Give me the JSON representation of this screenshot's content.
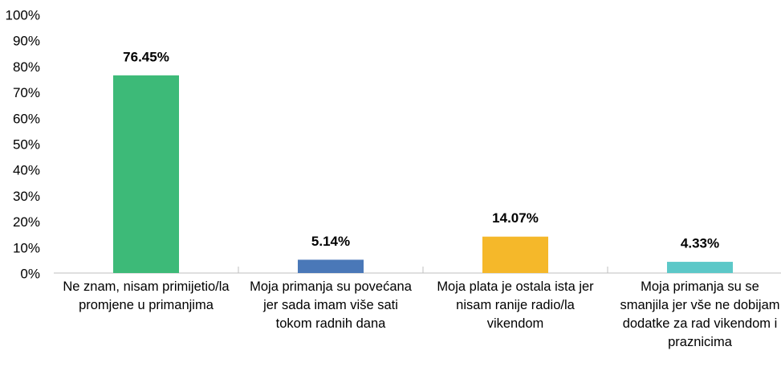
{
  "chart_data": {
    "type": "bar",
    "categories": [
      "Ne znam, nisam primijetio/la promjene u primanjima",
      "Moja primanja su povećana jer sada imam više sati tokom radnih dana",
      "Moja plata je ostala ista jer nisam ranije radio/la vikendom",
      "Moja primanja su se smanjila jer vše ne dobijam dodatke za rad vikendom i praznicima"
    ],
    "values": [
      76.45,
      5.14,
      14.07,
      4.33
    ],
    "value_labels": [
      "76.45%",
      "5.14%",
      "14.07%",
      "4.33%"
    ],
    "colors": [
      "#3dba78",
      "#4a78b8",
      "#f5b82a",
      "#5cc8c8"
    ],
    "ylim": [
      0,
      100
    ],
    "yticks": [
      {
        "value": 0,
        "label": "0%"
      },
      {
        "value": 10,
        "label": "10%"
      },
      {
        "value": 20,
        "label": "20%"
      },
      {
        "value": 30,
        "label": "30%"
      },
      {
        "value": 40,
        "label": "40%"
      },
      {
        "value": 50,
        "label": "50%"
      },
      {
        "value": 60,
        "label": "60%"
      },
      {
        "value": 70,
        "label": "70%"
      },
      {
        "value": 80,
        "label": "80%"
      },
      {
        "value": 90,
        "label": "90%"
      },
      {
        "value": 100,
        "label": "100%"
      }
    ],
    "grid": false
  }
}
